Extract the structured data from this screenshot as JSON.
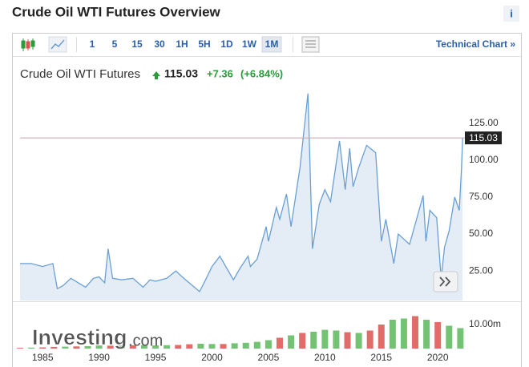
{
  "page": {
    "title": "Crude Oil WTI Futures Overview",
    "info": "i",
    "intervals": [
      "1",
      "5",
      "15",
      "30",
      "1H",
      "5H",
      "1D",
      "1W",
      "1M"
    ],
    "active_interval": 8,
    "technical_link": "Technical Chart »",
    "logo": "Investing",
    "logo_suffix": ".com"
  },
  "chart_data": {
    "type": "area",
    "x": [
      1983.0,
      1984.0,
      1985.0,
      1985.9,
      1986.3,
      1986.8,
      1987.5,
      1988.8,
      1989.5,
      1990.0,
      1990.5,
      1990.8,
      1991.2,
      1992.0,
      1993.0,
      1993.9,
      1994.5,
      1995.0,
      1996.0,
      1996.8,
      1997.5,
      1998.9,
      1999.5,
      2000.0,
      2000.7,
      2001.9,
      2002.5,
      2003.2,
      2003.4,
      2004.0,
      2004.8,
      2005.0,
      2005.7,
      2006.0,
      2006.6,
      2007.0,
      2007.8,
      2008.5,
      2008.9,
      2009.5,
      2010.0,
      2010.5,
      2011.3,
      2011.8,
      2012.2,
      2012.5,
      2013.0,
      2013.7,
      2014.5,
      2015.0,
      2015.4,
      2016.1,
      2016.5,
      2017.5,
      2018.7,
      2018.95,
      2019.3,
      2019.9,
      2020.3,
      2020.6,
      2021.0,
      2021.5,
      2021.9,
      2022.1,
      2022.2
    ],
    "series": [
      {
        "name": "Crude Oil WTI Futures",
        "color": "#6a9fd4",
        "fill": "#e4edf6",
        "values": [
          30,
          30,
          28,
          30,
          13,
          15,
          20,
          14,
          20,
          21,
          17,
          40,
          20,
          19,
          20,
          14,
          19,
          18,
          20,
          25,
          20,
          11,
          20,
          28,
          35,
          19,
          27,
          35,
          28,
          33,
          55,
          45,
          68,
          60,
          77,
          55,
          95,
          145,
          40,
          70,
          80,
          72,
          113,
          80,
          108,
          82,
          95,
          110,
          105,
          45,
          60,
          30,
          50,
          43,
          76,
          45,
          66,
          61,
          20,
          41,
          52,
          75,
          66,
          95,
          115.03
        ]
      }
    ],
    "last_price": 115.03,
    "change": {
      "value": 7.36,
      "label": "+7.36"
    },
    "change_percent": {
      "value": 6.84,
      "label": "(+6.84%)"
    },
    "up_color": "#2a9d3a",
    "last_line_color": "#c9a3aa",
    "xlim": [
      1983,
      2022.4
    ],
    "xticks": [
      1985,
      1990,
      1995,
      2000,
      2005,
      2010,
      2015,
      2020
    ],
    "ylim": [
      5,
      146
    ],
    "yticks": [
      {
        "value": 25,
        "label": "25.00"
      },
      {
        "value": 50,
        "label": "50.00"
      },
      {
        "value": 75,
        "label": "75.00"
      },
      {
        "value": 100,
        "label": "100.00"
      },
      {
        "value": 125,
        "label": "125.00"
      }
    ],
    "volume": {
      "x": [
        1983,
        1984,
        1985,
        1986,
        1987,
        1988,
        1989,
        1990,
        1991,
        1992,
        1993,
        1994,
        1995,
        1996,
        1997,
        1998,
        1999,
        2000,
        2001,
        2002,
        2003,
        2004,
        2005,
        2006,
        2007,
        2008,
        2009,
        2010,
        2011,
        2012,
        2013,
        2014,
        2015,
        2016,
        2017,
        2018,
        2019,
        2020,
        2021,
        2022
      ],
      "values": [
        0.3,
        0.4,
        0.5,
        0.7,
        0.8,
        0.9,
        1.0,
        1.3,
        1.2,
        1.2,
        1.4,
        1.4,
        1.3,
        1.4,
        1.5,
        1.8,
        2.0,
        1.9,
        1.9,
        2.2,
        2.4,
        2.8,
        3.5,
        4.5,
        5.5,
        6.5,
        7.0,
        7.8,
        7.5,
        6.8,
        6.5,
        7.5,
        10,
        12,
        12.5,
        13.5,
        12,
        11,
        9.5,
        8.5
      ],
      "colors": [
        "#d9534f",
        "#5cb85c",
        "#d9534f",
        "#d9534f",
        "#5cb85c",
        "#d9534f",
        "#5cb85c",
        "#5cb85c",
        "#d9534f",
        "#5cb85c",
        "#d9534f",
        "#5cb85c",
        "#5cb85c",
        "#5cb85c",
        "#d9534f",
        "#d9534f",
        "#5cb85c",
        "#5cb85c",
        "#d9534f",
        "#5cb85c",
        "#5cb85c",
        "#5cb85c",
        "#5cb85c",
        "#d9534f",
        "#5cb85c",
        "#d9534f",
        "#5cb85c",
        "#5cb85c",
        "#5cb85c",
        "#d9534f",
        "#5cb85c",
        "#d9534f",
        "#d9534f",
        "#5cb85c",
        "#5cb85c",
        "#d9534f",
        "#5cb85c",
        "#d9534f",
        "#5cb85c",
        "#5cb85c"
      ],
      "ylim": [
        0,
        19
      ],
      "yticks": [
        {
          "value": 10,
          "label": "10.00m"
        }
      ]
    }
  }
}
